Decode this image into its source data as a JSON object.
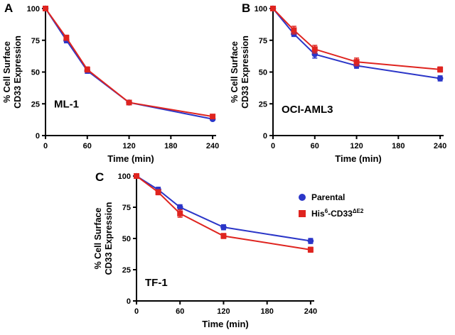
{
  "figure": {
    "background": "#ffffff"
  },
  "panels": [
    {
      "letter": "A"
    },
    {
      "letter": "B"
    },
    {
      "letter": "C"
    }
  ],
  "colors": {
    "parental": "#2b36c8",
    "his": "#df241f"
  },
  "legend": {
    "parental_label": "Parental",
    "his_prefix": "His",
    "his_sup1": "6",
    "his_mid": "-CD33",
    "his_sup2": "ΔE2"
  },
  "chart_data": [
    {
      "type": "line",
      "title": "ML-1",
      "xlabel": "Time (min)",
      "ylabel_lines": [
        "% Cell Surface",
        "CD33 Expression"
      ],
      "x": [
        0,
        30,
        60,
        120,
        240
      ],
      "xlim": [
        0,
        245
      ],
      "ylim": [
        0,
        100
      ],
      "xticks": [
        0,
        60,
        120,
        180,
        240
      ],
      "yticks": [
        0,
        25,
        50,
        75,
        100
      ],
      "grid": false,
      "title_y": 22,
      "series": [
        {
          "name": "Parental",
          "marker": "circle",
          "color": "#2b36c8",
          "values": [
            100,
            75,
            51,
            26,
            13
          ],
          "errors": [
            1,
            2,
            2,
            1,
            1
          ]
        },
        {
          "name": "His6-CD33-dE2",
          "marker": "square",
          "color": "#df241f",
          "values": [
            100,
            77,
            52,
            26,
            15
          ],
          "errors": [
            1,
            2,
            2,
            1,
            1
          ]
        }
      ]
    },
    {
      "type": "line",
      "title": "OCI-AML3",
      "xlabel": "Time (min)",
      "ylabel_lines": [
        "% Cell Surface",
        "CD33 Expression"
      ],
      "x": [
        0,
        30,
        60,
        120,
        240
      ],
      "xlim": [
        0,
        245
      ],
      "ylim": [
        0,
        100
      ],
      "xticks": [
        0,
        60,
        120,
        180,
        240
      ],
      "yticks": [
        0,
        25,
        50,
        75,
        100
      ],
      "grid": false,
      "title_y": 18,
      "series": [
        {
          "name": "Parental",
          "marker": "circle",
          "color": "#2b36c8",
          "values": [
            100,
            80,
            64,
            55,
            45
          ],
          "errors": [
            1,
            2,
            3,
            2,
            2
          ]
        },
        {
          "name": "His6-CD33-dE2",
          "marker": "square",
          "color": "#df241f",
          "values": [
            100,
            83,
            68,
            58,
            52
          ],
          "errors": [
            1,
            3,
            3,
            3,
            2
          ]
        }
      ]
    },
    {
      "type": "line",
      "title": "TF-1",
      "xlabel": "Time (min)",
      "ylabel_lines": [
        "% Cell Surface",
        "CD33 Expression"
      ],
      "x": [
        0,
        30,
        60,
        120,
        240
      ],
      "xlim": [
        0,
        245
      ],
      "ylim": [
        0,
        100
      ],
      "xticks": [
        0,
        60,
        120,
        180,
        240
      ],
      "yticks": [
        0,
        25,
        50,
        75,
        100
      ],
      "grid": false,
      "title_y": 12,
      "series": [
        {
          "name": "Parental",
          "marker": "circle",
          "color": "#2b36c8",
          "values": [
            100,
            89,
            75,
            59,
            48
          ],
          "errors": [
            1,
            2,
            2,
            2,
            2
          ]
        },
        {
          "name": "His6-CD33-dE2",
          "marker": "square",
          "color": "#df241f",
          "values": [
            100,
            87,
            70,
            52,
            41
          ],
          "errors": [
            1,
            2,
            3,
            2,
            2
          ]
        }
      ]
    }
  ]
}
